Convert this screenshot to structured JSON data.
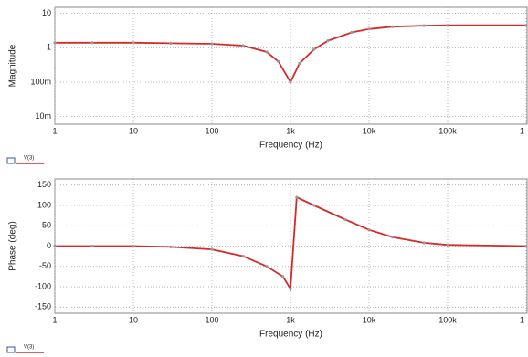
{
  "chart_data": [
    {
      "type": "line",
      "xlabel": "Frequency (Hz)",
      "ylabel": "Magnitude",
      "log_x": true,
      "log_y": true,
      "grid": true,
      "x": [
        1,
        3,
        10,
        30,
        100,
        250,
        500,
        700,
        1000,
        1300,
        2000,
        3000,
        6000,
        10000,
        20000,
        50000,
        100000,
        1000000
      ],
      "series": [
        {
          "name": "V(3)",
          "color": "#d42a2a",
          "values": [
            1.4,
            1.4,
            1.4,
            1.35,
            1.3,
            1.15,
            0.75,
            0.4,
            0.1,
            0.35,
            0.9,
            1.6,
            2.8,
            3.5,
            4.1,
            4.4,
            4.5,
            4.5
          ]
        }
      ],
      "xlim": [
        1,
        1000000
      ],
      "xticks": [
        1,
        10,
        100,
        {
          "value": 1000,
          "label": "1k"
        },
        {
          "value": 10000,
          "label": "10k"
        },
        {
          "value": 100000,
          "label": "100k"
        },
        {
          "value": 1000000,
          "label": "1"
        }
      ],
      "ylim": [
        0.006,
        15
      ],
      "yticks": [
        {
          "value": 0.01,
          "label": "10m"
        },
        {
          "value": 0.1,
          "label": "100m"
        },
        1,
        10
      ]
    },
    {
      "type": "line",
      "xlabel": "Frequency (Hz)",
      "ylabel": "Phase (deg)",
      "log_x": true,
      "log_y": false,
      "grid": true,
      "x": [
        1,
        3,
        10,
        30,
        100,
        250,
        500,
        800,
        1000,
        1200,
        2000,
        5000,
        10000,
        20000,
        50000,
        100000,
        1000000
      ],
      "series": [
        {
          "name": "V(3)",
          "color": "#d42a2a",
          "values": [
            0,
            0,
            0,
            -2,
            -8,
            -25,
            -50,
            -75,
            -105,
            120,
            100,
            65,
            40,
            22,
            8,
            3,
            0
          ]
        }
      ],
      "xlim": [
        1,
        1000000
      ],
      "xticks": [
        1,
        10,
        100,
        {
          "value": 1000,
          "label": "1k"
        },
        {
          "value": 10000,
          "label": "10k"
        },
        {
          "value": 100000,
          "label": "100k"
        },
        {
          "value": 1000000,
          "label": "1"
        }
      ],
      "ylim": [
        -165,
        165
      ],
      "yticks": [
        -150,
        -100,
        -50,
        0,
        50,
        100,
        150
      ]
    }
  ]
}
